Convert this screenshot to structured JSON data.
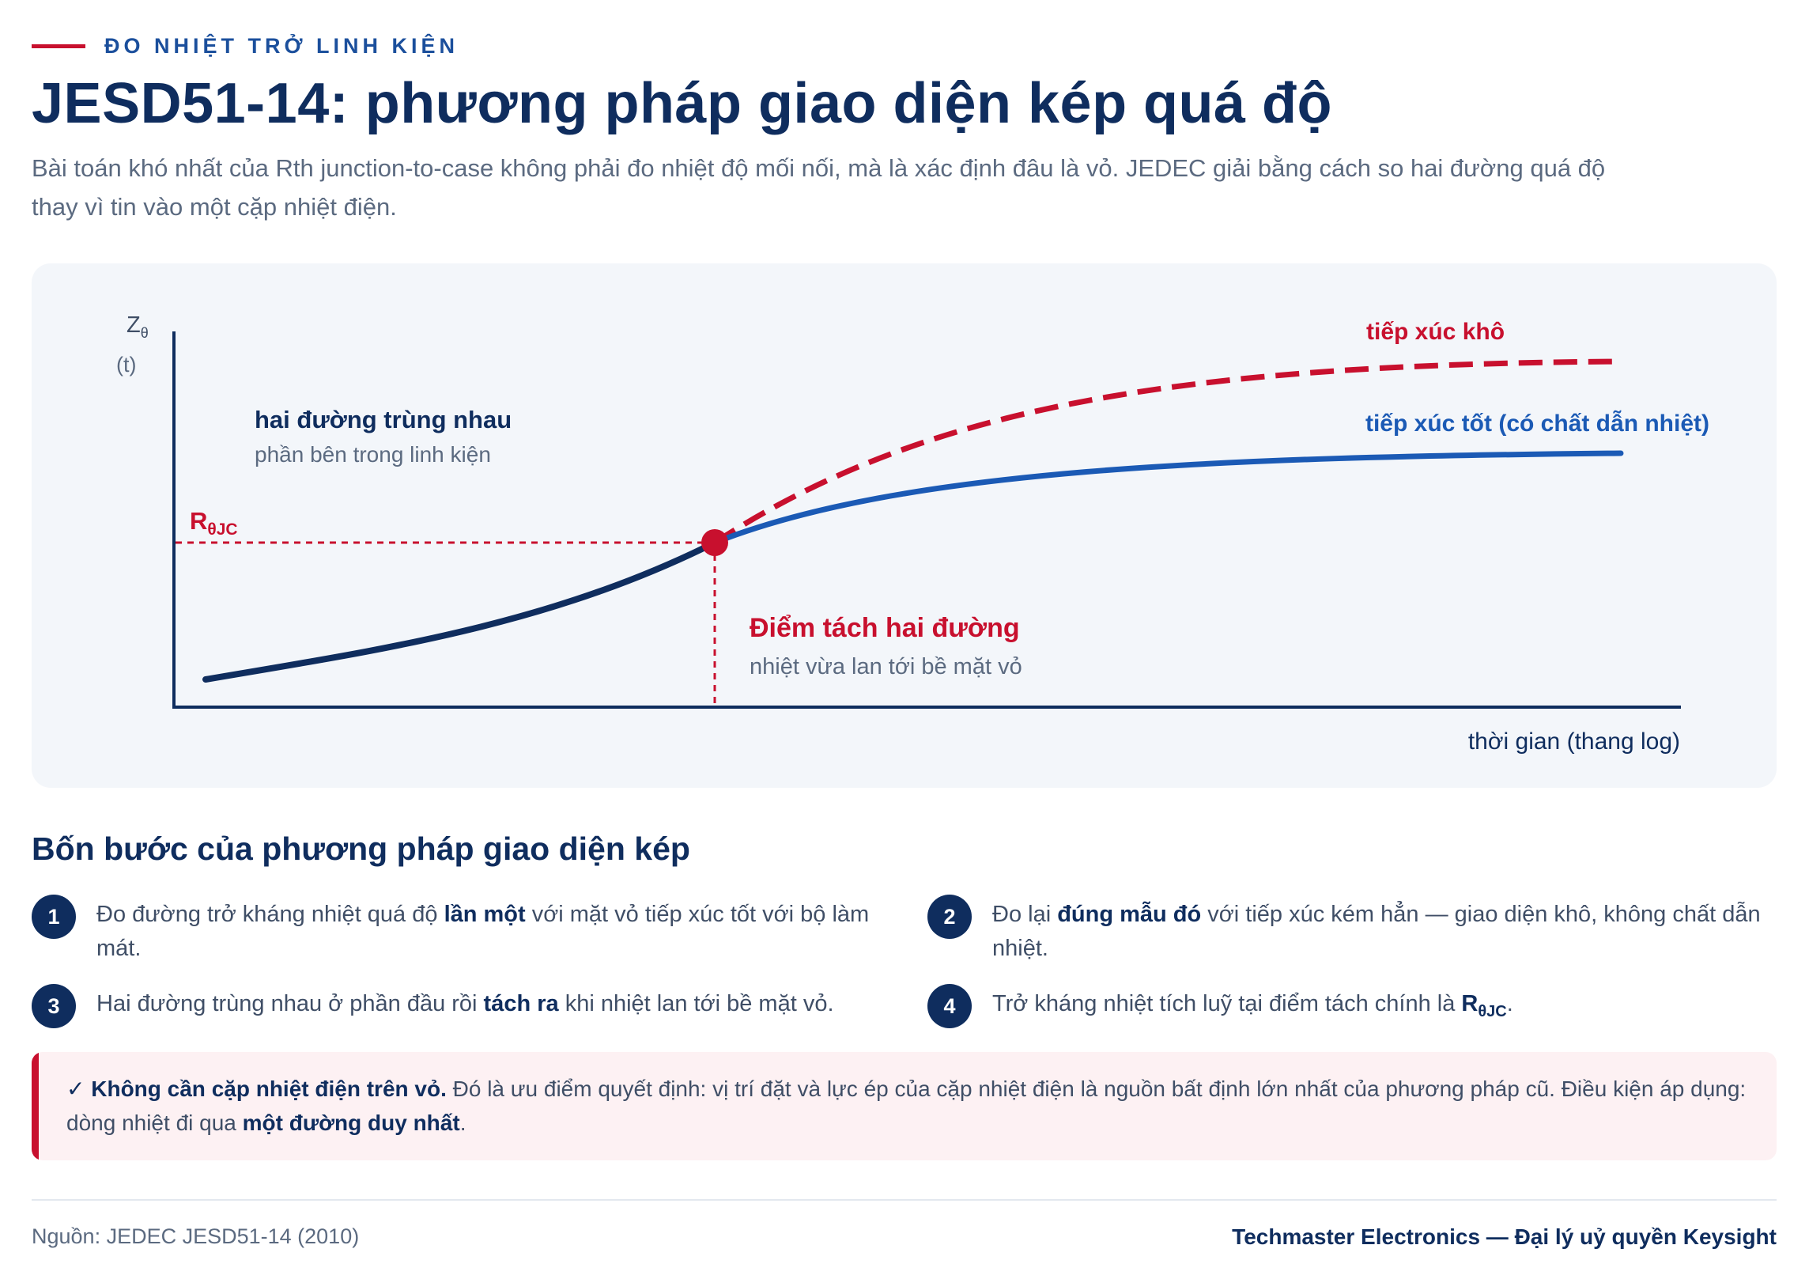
{
  "header": {
    "kicker": "ĐO NHIỆT TRỞ LINH KIỆN",
    "title": "JESD51-14: phương pháp giao diện kép quá độ",
    "subtitle": "Bài toán khó nhất của Rth junction-to-case không phải đo nhiệt độ mối nối, mà là xác định đâu là vỏ. JEDEC giải bằng cách so hai đường quá độ thay vì tin vào một cặp nhiệt điện."
  },
  "diagram": {
    "y_axis_label": "Z",
    "y_axis_sub": "θ",
    "y_axis_unit": "(t)",
    "x_axis_label": "thời gian (thang log)",
    "r_label": "R",
    "r_label_sub": "θJC",
    "overlap_title": "hai đường trùng nhau",
    "overlap_subtitle": "phần bên trong linh kiện",
    "split_title": "Điểm tách hai đường",
    "split_subtitle": "nhiệt vừa lan tới bề mặt vỏ",
    "curve_dry_label": "tiếp xúc khô",
    "curve_good_label": "tiếp xúc tốt (có chất dẫn nhiệt)",
    "colors": {
      "accent": "#c8102e",
      "navy": "#0f2d5e",
      "blue": "#1b5ab5",
      "panel": "#f3f6fa"
    }
  },
  "steps": {
    "title": "Bốn bước của phương pháp giao diện kép",
    "items": [
      {
        "num": "1",
        "pre": "Đo đường trở kháng nhiệt quá độ ",
        "bold": "lần một",
        "post": " với mặt vỏ tiếp xúc tốt với bộ làm mát."
      },
      {
        "num": "2",
        "pre": "Đo lại ",
        "bold": "đúng mẫu đó",
        "post": " với tiếp xúc kém hẳn — giao diện khô, không chất dẫn nhiệt."
      },
      {
        "num": "3",
        "pre": "Hai đường trùng nhau ở phần đầu rồi ",
        "bold": "tách ra",
        "post": " khi nhiệt lan tới bề mặt vỏ."
      },
      {
        "num": "4",
        "pre": "Trở kháng nhiệt tích luỹ tại điểm tách chính là ",
        "bold": "R",
        "bold_sub": "θJC",
        "post": "."
      }
    ]
  },
  "callout": {
    "check": "✓",
    "bold": "Không cần cặp nhiệt điện trên vỏ.",
    "text": " Đó là ưu điểm quyết định: vị trí đặt và lực ép của cặp nhiệt điện là nguồn bất định lớn nhất của phương pháp cũ. Điều kiện áp dụng: dòng nhiệt đi qua ",
    "bold2": "một đường duy nhất",
    "end": "."
  },
  "footer": {
    "source": "Nguồn: JEDEC JESD51-14 (2010)",
    "brand": "Techmaster Electronics — Đại lý uỷ quyền Keysight"
  }
}
